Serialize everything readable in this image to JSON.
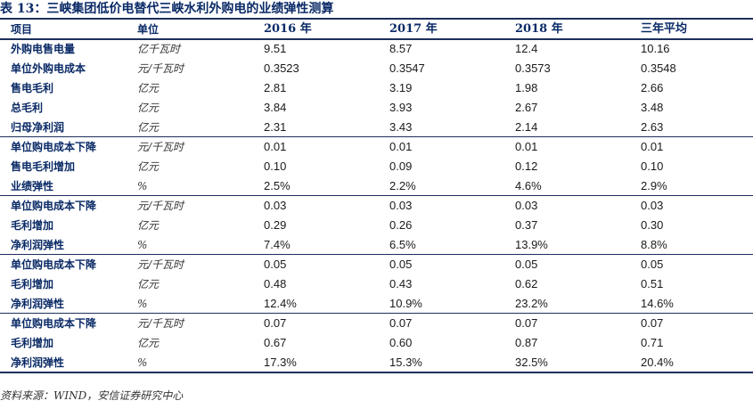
{
  "title": "表 13：三峡集团低价电替代三峡水利外购电的业绩弹性测算",
  "header": [
    "项目",
    "单位",
    "2016 年",
    "2017 年",
    "2018 年",
    "三年平均"
  ],
  "groups": [
    {
      "rows": [
        [
          "外购电售电量",
          "亿千瓦时",
          "9.51",
          "8.57",
          "12.4",
          "10.16"
        ],
        [
          "单位外购电成本",
          "元/千瓦时",
          "0.3523",
          "0.3547",
          "0.3573",
          "0.3548"
        ],
        [
          "售电毛利",
          "亿元",
          "2.81",
          "3.19",
          "1.98",
          "2.66"
        ],
        [
          "总毛利",
          "亿元",
          "3.84",
          "3.93",
          "2.67",
          "3.48"
        ],
        [
          "归母净利润",
          "亿元",
          "2.31",
          "3.43",
          "2.14",
          "2.63"
        ]
      ]
    },
    {
      "rows": [
        [
          "单位购电成本下降",
          "元/千瓦时",
          "0.01",
          "0.01",
          "0.01",
          "0.01"
        ],
        [
          "售电毛利增加",
          "亿元",
          "0.10",
          "0.09",
          "0.12",
          "0.10"
        ],
        [
          "业绩弹性",
          "%",
          "2.5%",
          "2.2%",
          "4.6%",
          "2.9%"
        ]
      ]
    },
    {
      "rows": [
        [
          "单位购电成本下降",
          "元/千瓦时",
          "0.03",
          "0.03",
          "0.03",
          "0.03"
        ],
        [
          "毛利增加",
          "亿元",
          "0.29",
          "0.26",
          "0.37",
          "0.30"
        ],
        [
          "净利润弹性",
          "%",
          "7.4%",
          "6.5%",
          "13.9%",
          "8.8%"
        ]
      ]
    },
    {
      "rows": [
        [
          "单位购电成本下降",
          "元/千瓦时",
          "0.05",
          "0.05",
          "0.05",
          "0.05"
        ],
        [
          "毛利增加",
          "亿元",
          "0.48",
          "0.43",
          "0.62",
          "0.51"
        ],
        [
          "净利润弹性",
          "%",
          "12.4%",
          "10.9%",
          "23.2%",
          "14.6%"
        ]
      ]
    },
    {
      "rows": [
        [
          "单位购电成本下降",
          "元/千瓦时",
          "0.07",
          "0.07",
          "0.07",
          "0.07"
        ],
        [
          "毛利增加",
          "亿元",
          "0.67",
          "0.60",
          "0.87",
          "0.71"
        ],
        [
          "净利润弹性",
          "%",
          "17.3%",
          "15.3%",
          "32.5%",
          "20.4%"
        ]
      ]
    }
  ],
  "source": "资料来源：WIND，安信证券研究中心"
}
